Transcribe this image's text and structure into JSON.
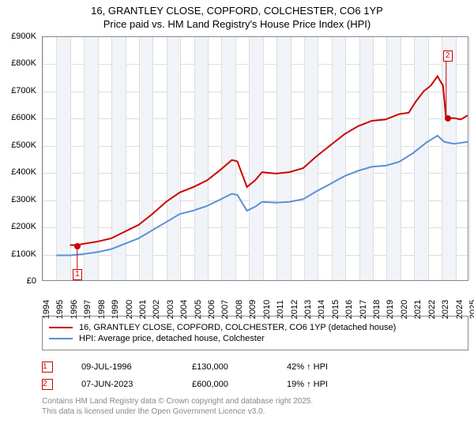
{
  "titles": {
    "line1": "16, GRANTLEY CLOSE, COPFORD, COLCHESTER, CO6 1YP",
    "line2": "Price paid vs. HM Land Registry's House Price Index (HPI)"
  },
  "chart": {
    "type": "line",
    "background_color": "#ffffff",
    "grid_color": "#dddddd",
    "axis_color": "#888888",
    "shade_color": "#f0f4f8",
    "x_years": [
      1994,
      1995,
      1996,
      1997,
      1998,
      1999,
      2000,
      2001,
      2002,
      2003,
      2004,
      2005,
      2006,
      2007,
      2008,
      2009,
      2010,
      2011,
      2012,
      2013,
      2014,
      2015,
      2016,
      2017,
      2018,
      2019,
      2020,
      2021,
      2022,
      2023,
      2024,
      2025
    ],
    "ylim": [
      0,
      900000
    ],
    "yticks": [
      0,
      100000,
      200000,
      300000,
      400000,
      500000,
      600000,
      700000,
      800000,
      900000
    ],
    "ytick_labels": [
      "£0",
      "£100K",
      "£200K",
      "£300K",
      "£400K",
      "£500K",
      "£600K",
      "£700K",
      "£800K",
      "£900K"
    ],
    "label_fontsize": 11,
    "series": {
      "price_paid": {
        "label": "16, GRANTLEY CLOSE, COPFORD, COLCHESTER, CO6 1YP (detached house)",
        "color": "#cc0000",
        "line_width": 2,
        "points": [
          [
            1996.0,
            130000
          ],
          [
            1996.5,
            130000
          ],
          [
            1997,
            135000
          ],
          [
            1998,
            143000
          ],
          [
            1999,
            155000
          ],
          [
            2000,
            180000
          ],
          [
            2001,
            205000
          ],
          [
            2002,
            245000
          ],
          [
            2003,
            290000
          ],
          [
            2004,
            325000
          ],
          [
            2005,
            345000
          ],
          [
            2006,
            370000
          ],
          [
            2007,
            410000
          ],
          [
            2007.8,
            445000
          ],
          [
            2008.2,
            440000
          ],
          [
            2008.9,
            345000
          ],
          [
            2009.5,
            370000
          ],
          [
            2010,
            400000
          ],
          [
            2011,
            395000
          ],
          [
            2012,
            400000
          ],
          [
            2013,
            415000
          ],
          [
            2014,
            460000
          ],
          [
            2015,
            500000
          ],
          [
            2016,
            540000
          ],
          [
            2017,
            570000
          ],
          [
            2018,
            590000
          ],
          [
            2019,
            595000
          ],
          [
            2020,
            615000
          ],
          [
            2020.7,
            620000
          ],
          [
            2021.2,
            660000
          ],
          [
            2021.8,
            700000
          ],
          [
            2022.3,
            720000
          ],
          [
            2022.8,
            755000
          ],
          [
            2023.2,
            720000
          ],
          [
            2023.42,
            600000
          ],
          [
            2024,
            600000
          ],
          [
            2024.5,
            595000
          ],
          [
            2025,
            610000
          ]
        ]
      },
      "hpi": {
        "label": "HPI: Average price, detached house, Colchester",
        "color": "#5b8fd6",
        "line_width": 2,
        "points": [
          [
            1995,
            92000
          ],
          [
            1996,
            92000
          ],
          [
            1997,
            97000
          ],
          [
            1998,
            104000
          ],
          [
            1999,
            115000
          ],
          [
            2000,
            135000
          ],
          [
            2001,
            155000
          ],
          [
            2002,
            185000
          ],
          [
            2003,
            215000
          ],
          [
            2004,
            245000
          ],
          [
            2005,
            258000
          ],
          [
            2006,
            275000
          ],
          [
            2007,
            300000
          ],
          [
            2007.8,
            320000
          ],
          [
            2008.2,
            316000
          ],
          [
            2008.9,
            257000
          ],
          [
            2009.5,
            272000
          ],
          [
            2010,
            290000
          ],
          [
            2011,
            287000
          ],
          [
            2012,
            290000
          ],
          [
            2013,
            300000
          ],
          [
            2014,
            330000
          ],
          [
            2015,
            357000
          ],
          [
            2016,
            385000
          ],
          [
            2017,
            405000
          ],
          [
            2018,
            420000
          ],
          [
            2019,
            424000
          ],
          [
            2020,
            438000
          ],
          [
            2021,
            470000
          ],
          [
            2022,
            510000
          ],
          [
            2022.8,
            535000
          ],
          [
            2023.3,
            512000
          ],
          [
            2024,
            505000
          ],
          [
            2025,
            512000
          ]
        ]
      }
    },
    "sale_markers": [
      {
        "num": "1",
        "year": 1996.52,
        "price": 130000,
        "color": "#cc0000",
        "box_y": 25000
      },
      {
        "num": "2",
        "year": 2023.43,
        "price": 600000,
        "color": "#cc0000",
        "box_y": 830000
      }
    ]
  },
  "legend": {
    "items": [
      {
        "color": "#cc0000",
        "text": "16, GRANTLEY CLOSE, COPFORD, COLCHESTER, CO6 1YP (detached house)"
      },
      {
        "color": "#5b8fd6",
        "text": "HPI: Average price, detached house, Colchester"
      }
    ]
  },
  "sales": [
    {
      "num": "1",
      "color": "#cc0000",
      "date": "09-JUL-1996",
      "price": "£130,000",
      "hpi_delta": "42% ↑ HPI"
    },
    {
      "num": "2",
      "color": "#cc0000",
      "date": "07-JUN-2023",
      "price": "£600,000",
      "hpi_delta": "19% ↑ HPI"
    }
  ],
  "footer": {
    "line1": "Contains HM Land Registry data © Crown copyright and database right 2025.",
    "line2": "This data is licensed under the Open Government Licence v3.0."
  }
}
